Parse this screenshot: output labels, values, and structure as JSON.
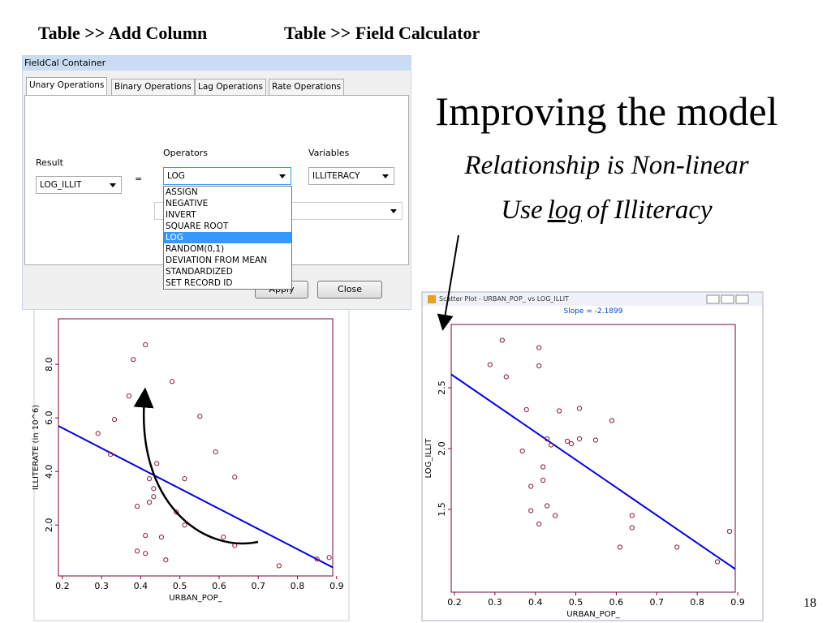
{
  "header": {
    "left": "Table >> Add Column",
    "right": "Table >> Field Calculator"
  },
  "slide": {
    "title": "Improving the model",
    "line1": "Relationship is Non-linear",
    "line2": {
      "before": "Use",
      "emph": "log",
      "after": "of Illiteracy"
    },
    "page_number": "18"
  },
  "dialog": {
    "title": "FieldCal Container",
    "tabs": [
      "Unary Operations",
      "Binary Operations",
      "Lag Operations",
      "Rate Operations"
    ],
    "result_label": "Result",
    "operators_label": "Operators",
    "variables_label": "Variables",
    "result_value": "LOG_ILLIT",
    "equals": "=",
    "operator_value": "LOG",
    "variable_value": "ILLITERACY",
    "operator_options": [
      "ASSIGN",
      "NEGATIVE",
      "INVERT",
      "SQUARE ROOT",
      "LOG",
      "RANDOM(0,1)",
      "DEVIATION FROM MEAN",
      "STANDARDIZED",
      "SET RECORD ID"
    ],
    "selected_option": 4,
    "apply": "Apply",
    "close": "Close"
  },
  "chart_data": [
    {
      "type": "scatter",
      "x_label": "URBAN_POP_",
      "y_label": "ILLITERATE (in 10^6)",
      "color": "#8b1a3a",
      "line_color": "#0000ee",
      "x": [
        0.291,
        0.323,
        0.333,
        0.37,
        0.381,
        0.412,
        0.391,
        0.391,
        0.412,
        0.412,
        0.422,
        0.422,
        0.433,
        0.433,
        0.441,
        0.453,
        0.464,
        0.48,
        0.491,
        0.512,
        0.512,
        0.551,
        0.591,
        0.611,
        0.64,
        0.64,
        0.753,
        0.85,
        0.881
      ],
      "values": [
        5.42,
        4.64,
        5.94,
        6.82,
        8.18,
        8.73,
        2.7,
        1.03,
        1.61,
        0.94,
        2.85,
        3.73,
        3.36,
        3.06,
        4.3,
        1.55,
        0.7,
        7.36,
        2.48,
        3.73,
        2.0,
        6.06,
        4.73,
        1.55,
        3.79,
        1.24,
        0.48,
        0.73,
        0.79
      ],
      "fit_x": [
        0.19,
        0.89
      ],
      "fit_y": [
        5.7,
        0.42
      ],
      "xlim": [
        0.19,
        0.89
      ],
      "ylim": [
        0.1,
        9.7
      ],
      "xticks": [
        0.2,
        0.3,
        0.4,
        0.5,
        0.6,
        0.7,
        0.8,
        0.9
      ],
      "yticks": [
        {
          "value": 2,
          "label": "2.0"
        },
        {
          "value": 4,
          "label": "4.0"
        },
        {
          "value": 6,
          "label": "6.0"
        },
        {
          "value": 8,
          "label": "8.0"
        }
      ]
    },
    {
      "type": "scatter",
      "title": "Scatter Plot - URBAN_POP_ vs LOG_ILLIT",
      "subtitle": "Slope = -2.1899",
      "x_label": "URBAN_POP_",
      "y_label": "LOG_ILLIT",
      "color": "#8b1a3a",
      "line_color": "#0000ee",
      "x": [
        0.288,
        0.318,
        0.328,
        0.378,
        0.368,
        0.409,
        0.409,
        0.389,
        0.389,
        0.419,
        0.419,
        0.409,
        0.429,
        0.439,
        0.429,
        0.449,
        0.459,
        0.479,
        0.489,
        0.509,
        0.509,
        0.549,
        0.589,
        0.609,
        0.639,
        0.639,
        0.75,
        0.85,
        0.88
      ],
      "values": [
        2.69,
        2.89,
        2.59,
        2.32,
        1.98,
        2.83,
        2.68,
        1.69,
        1.49,
        1.85,
        1.74,
        1.38,
        2.08,
        2.03,
        1.53,
        1.45,
        2.31,
        2.06,
        2.04,
        2.33,
        2.08,
        2.07,
        2.23,
        1.19,
        1.45,
        1.35,
        1.19,
        1.07,
        1.32
      ],
      "fit_x": [
        0.192,
        0.894
      ],
      "fit_y": [
        2.61,
        1.01
      ],
      "xlim": [
        0.192,
        0.894
      ],
      "ylim": [
        0.82,
        3.02
      ],
      "xticks": [
        0.2,
        0.3,
        0.4,
        0.5,
        0.6,
        0.7,
        0.8,
        0.9
      ],
      "yticks": [
        1.5,
        {
          "value": 2,
          "label": "2.0"
        },
        2.5
      ]
    }
  ]
}
